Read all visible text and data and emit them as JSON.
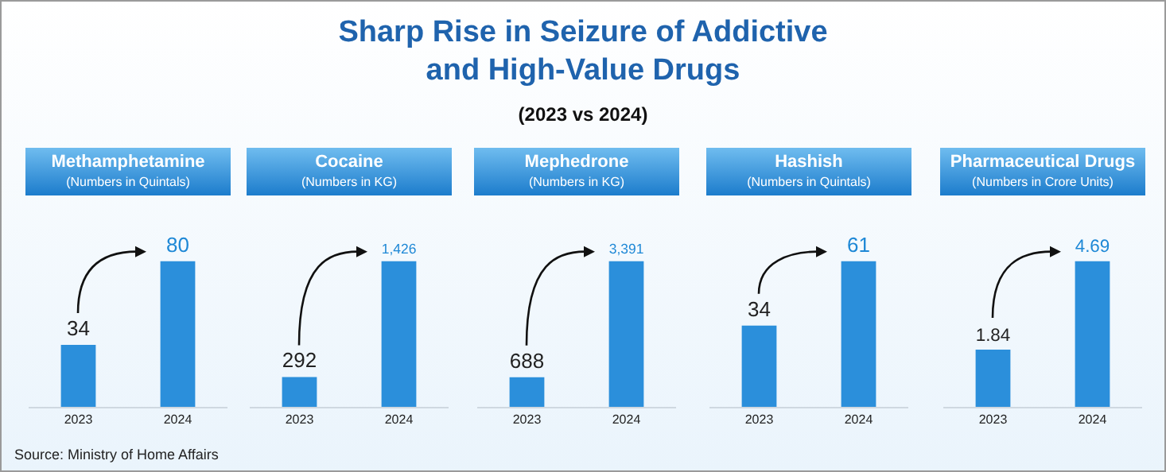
{
  "chart_data": [
    {
      "type": "other",
      "title": "Sharp Rise in Seizure of Addictive and High-Value Drugs",
      "subtitle": "(2023 vs 2024)",
      "annotations": [
        "Source: Ministry of Home Affairs"
      ]
    },
    {
      "type": "bar",
      "title": "Methamphetamine",
      "subtitle": "(Numbers in Quintals)",
      "categories": [
        "2023",
        "2024"
      ],
      "values": [
        34,
        80
      ],
      "value_labels": [
        "34",
        "80"
      ],
      "color": "#2b8fdb"
    },
    {
      "type": "bar",
      "title": "Cocaine",
      "subtitle": "(Numbers in KG)",
      "categories": [
        "2023",
        "2024"
      ],
      "values": [
        292,
        1426
      ],
      "value_labels": [
        "292",
        "1,426"
      ],
      "color": "#2b8fdb"
    },
    {
      "type": "bar",
      "title": "Mephedrone",
      "subtitle": "(Numbers in KG)",
      "categories": [
        "2023",
        "2024"
      ],
      "values": [
        688,
        3391
      ],
      "value_labels": [
        "688",
        "3,391"
      ],
      "color": "#2b8fdb"
    },
    {
      "type": "bar",
      "title": "Hashish",
      "subtitle": "(Numbers in Quintals)",
      "categories": [
        "2023",
        "2024"
      ],
      "values": [
        34,
        61
      ],
      "value_labels": [
        "34",
        "61"
      ],
      "color": "#2b8fdb"
    },
    {
      "type": "bar",
      "title": "Pharmaceutical Drugs",
      "subtitle": "(Numbers in Crore Units)",
      "categories": [
        "2023",
        "2024"
      ],
      "values": [
        1.84,
        4.69
      ],
      "value_labels": [
        "1.84",
        "4.69"
      ],
      "color": "#2b8fdb"
    }
  ]
}
